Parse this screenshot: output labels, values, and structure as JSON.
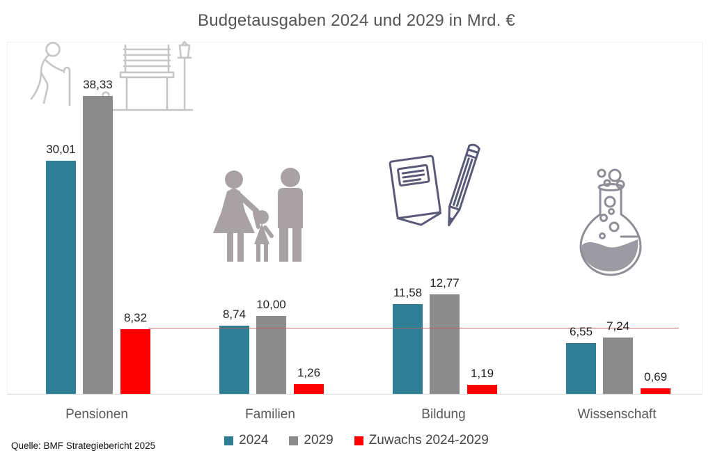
{
  "title": "Budgetausgaben 2024 und 2029 in Mrd. €",
  "source": "Quelle: BMF Strategiebericht 2025",
  "legend": [
    {
      "label": "2024",
      "color": "#2e7e95"
    },
    {
      "label": "2029",
      "color": "#8b8b8b"
    },
    {
      "label": "Zuwachs 2024-2029",
      "color": "#fe0000"
    }
  ],
  "colors": {
    "bar_2024": "#2e7e95",
    "bar_2029": "#8b8b8b",
    "bar_zuwachs": "#fe0000",
    "reference_line": "#c25a5a",
    "axis_baseline": "#d8d8d8",
    "title_text": "#555555",
    "category_text": "#595959",
    "value_text": "#1f1f1f"
  },
  "chart_data": {
    "type": "bar",
    "title": "Budgetausgaben 2024 und 2029 in Mrd. €",
    "categories": [
      "Pensionen",
      "Familien",
      "Bildung",
      "Wissenschaft"
    ],
    "series": [
      {
        "name": "2024",
        "color": "#2e7e95",
        "values": [
          30.01,
          8.74,
          11.58,
          6.55
        ]
      },
      {
        "name": "2029",
        "color": "#8b8b8b",
        "values": [
          38.33,
          10.0,
          12.77,
          7.24
        ]
      },
      {
        "name": "Zuwachs 2024-2029",
        "color": "#fe0000",
        "values": [
          8.32,
          1.26,
          1.19,
          0.69
        ]
      }
    ],
    "value_labels": [
      [
        "30,01",
        "8,74",
        "11,58",
        "6,55"
      ],
      [
        "38,33",
        "10,00",
        "12,77",
        "7,24"
      ],
      [
        "8,32",
        "1,26",
        "1,19",
        "0,69"
      ]
    ],
    "decimal_separator": ",",
    "reference_line": {
      "value": 8.32,
      "color": "#c25a5a",
      "note": "level of Pensionen Zuwachs extended across chart"
    },
    "ylim": [
      0,
      45.2
    ],
    "grid": false,
    "y_axis_ticks_visible": false,
    "legend_position": "bottom",
    "icons": [
      "pensioner-bench-lamp",
      "family",
      "notebook-pencil",
      "science-flask"
    ]
  }
}
